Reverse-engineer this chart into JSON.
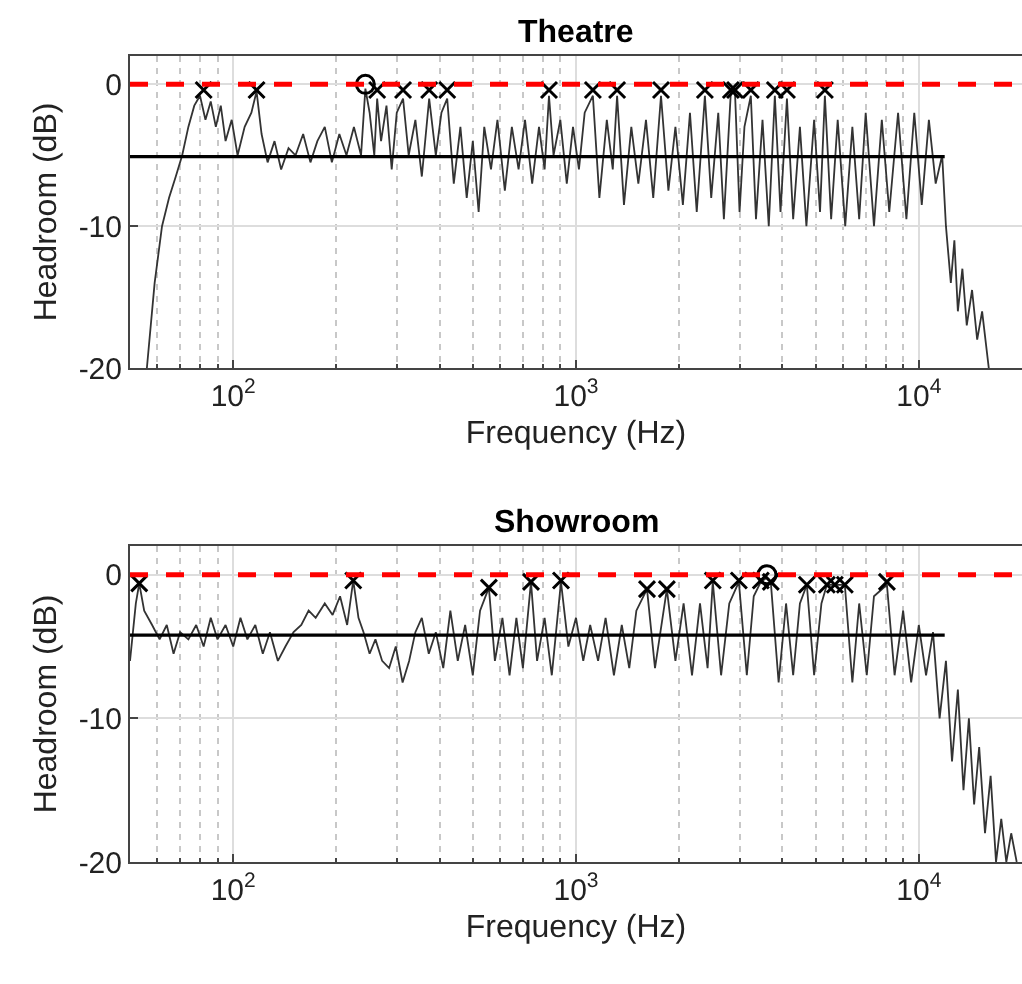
{
  "chart_data": [
    {
      "type": "line",
      "title": "Theatre",
      "xlabel": "Frequency (Hz)",
      "ylabel": "Headroom (dB)",
      "log": "x",
      "xlim": [
        50,
        20000
      ],
      "ylim": [
        -20,
        2
      ],
      "xticks": [
        {
          "value": 100,
          "label": "10$^{2}$"
        },
        {
          "value": 1000,
          "label": "10$^{3}$"
        },
        {
          "value": 10000,
          "label": "10$^{4}$"
        }
      ],
      "yticks": [
        -20,
        -10,
        0
      ],
      "grid": true,
      "ref_lines": [
        {
          "axis": "y",
          "value": 0,
          "color": "#ff0000",
          "line_style": "dashed"
        }
      ],
      "series": [
        {
          "color": "#333333",
          "x": [
            56,
            59,
            62,
            65,
            68,
            71,
            74,
            77,
            80,
            83,
            86,
            89,
            92,
            95,
            99,
            103,
            108,
            113,
            117,
            121,
            126,
            132,
            138,
            145,
            152,
            160,
            168,
            176,
            185,
            194,
            204,
            214,
            225,
            236,
            243,
            250,
            258,
            263,
            270,
            280,
            290,
            300,
            313,
            325,
            340,
            355,
            373,
            390,
            405,
            421,
            440,
            460,
            480,
            500,
            520,
            540,
            565,
            590,
            620,
            650,
            680,
            710,
            745,
            780,
            810,
            834,
            860,
            900,
            940,
            980,
            1020,
            1060,
            1120,
            1170,
            1230,
            1280,
            1318,
            1380,
            1450,
            1520,
            1600,
            1680,
            1770,
            1860,
            1950,
            2050,
            2150,
            2250,
            2377,
            2480,
            2600,
            2700,
            2830,
            2910,
            3000,
            3100,
            3236,
            3350,
            3500,
            3650,
            3802,
            3950,
            4124,
            4300,
            4500,
            4700,
            4950,
            5150,
            5321,
            5550,
            5800,
            6100,
            6400,
            6700,
            7000,
            7400,
            7800,
            8200,
            8700,
            9200,
            9700,
            10200,
            10700,
            11200,
            11700,
            12000,
            12400,
            12700,
            13000,
            13400,
            13800,
            14300,
            14800,
            15300,
            16000
          ],
          "values": [
            -20,
            -14,
            -10,
            -8,
            -6.5,
            -5,
            -3,
            -1.5,
            -0.8,
            -2.5,
            -1.2,
            -3,
            -1.5,
            -4,
            -2.5,
            -5,
            -3,
            -2,
            -0.5,
            -3.5,
            -5.5,
            -4,
            -6,
            -4.5,
            -5,
            -3.5,
            -5.5,
            -4,
            -3,
            -5.5,
            -3.5,
            -5,
            -3,
            -5,
            -0.3,
            -2,
            -5,
            -1,
            -4,
            -1.5,
            -6,
            -2,
            -1,
            -5,
            -2.5,
            -6.5,
            -1,
            -5,
            -2,
            -1,
            -7,
            -3,
            -8,
            -4,
            -9,
            -3,
            -6,
            -2.5,
            -7.5,
            -3,
            -6,
            -2.5,
            -7,
            -3,
            -6,
            -0.8,
            -5,
            -2.5,
            -7,
            -3,
            -6,
            -2,
            -0.8,
            -8,
            -2.5,
            -6,
            -0.8,
            -8.5,
            -3,
            -7,
            -2.5,
            -8,
            -0.8,
            -7.5,
            -3,
            -8.5,
            -2,
            -9,
            -0.8,
            -8,
            -2,
            -9.5,
            -0.5,
            -0.6,
            -9,
            -3,
            -0.8,
            -9.5,
            -2.5,
            -10,
            -0.8,
            -9,
            -1,
            -9.5,
            -3,
            -10,
            -2.5,
            -9,
            -0.8,
            -9.5,
            -2.5,
            -10,
            -3,
            -9.5,
            -2,
            -10,
            -2.5,
            -9,
            -2,
            -9.5,
            -2,
            -8.5,
            -2.5,
            -7,
            -5,
            -10,
            -14,
            -11,
            -16,
            -13,
            -17,
            -14.5,
            -18,
            -16,
            -20
          ]
        },
        {
          "color": "#000000",
          "x": [
            50,
            11900
          ],
          "values": [
            -5.1,
            -5.1
          ]
        },
        {
          "type": "scatter",
          "marker": "cross",
          "color": "#000000",
          "x": [
            82,
            117,
            263,
            313,
            373,
            421,
            834,
            1120,
            1318,
            1770,
            2377,
            2830,
            2910,
            3236,
            3802,
            4124,
            5321
          ],
          "values": [
            -0.4,
            -0.4,
            -0.4,
            -0.4,
            -0.4,
            -0.4,
            -0.4,
            -0.4,
            -0.4,
            -0.4,
            -0.4,
            -0.4,
            -0.4,
            -0.4,
            -0.4,
            -0.4,
            -0.4
          ]
        },
        {
          "type": "scatter",
          "marker": "circle",
          "color": "#000000",
          "x": [
            243
          ],
          "values": [
            0
          ]
        }
      ]
    },
    {
      "type": "line",
      "title": "Showroom",
      "xlabel": "Frequency (Hz)",
      "ylabel": "Headroom (dB)",
      "log": "x",
      "xlim": [
        50,
        20000
      ],
      "ylim": [
        -20,
        2
      ],
      "xticks": [
        {
          "value": 100,
          "label": "10$^{2}$"
        },
        {
          "value": 1000,
          "label": "10$^{3}$"
        },
        {
          "value": 10000,
          "label": "10$^{4}$"
        }
      ],
      "yticks": [
        -20,
        -10,
        0
      ],
      "grid": true,
      "ref_lines": [
        {
          "axis": "y",
          "value": 0,
          "color": "#ff0000",
          "line_style": "dashed"
        }
      ],
      "series": [
        {
          "color": "#333333",
          "x": [
            50,
            52,
            53.2,
            55,
            58,
            61,
            64,
            67,
            70,
            74,
            78,
            82,
            86,
            90,
            95,
            100,
            105,
            110,
            116,
            122,
            128,
            135,
            142,
            150,
            158,
            166,
            174,
            185,
            195,
            205,
            215,
            224,
            232,
            240,
            250,
            260,
            272,
            285,
            298,
            312,
            326,
            340,
            355,
            372,
            390,
            410,
            430,
            452,
            475,
            500,
            525,
            557,
            580,
            610,
            640,
            670,
            700,
            739,
            770,
            810,
            850,
            904,
            950,
            1000,
            1050,
            1100,
            1160,
            1220,
            1290,
            1360,
            1430,
            1500,
            1611,
            1700,
            1841,
            1950,
            2060,
            2180,
            2300,
            2420,
            2506,
            2650,
            2800,
            2986,
            3150,
            3300,
            3460,
            3606,
            3700,
            3900,
            4100,
            4300,
            4500,
            4714,
            4950,
            5200,
            5393,
            5689,
            6084,
            6400,
            6700,
            7050,
            7400,
            8072,
            8500,
            9000,
            9500,
            10000,
            10500,
            11000,
            11500,
            12000,
            12500,
            13000,
            13500,
            14000,
            14500,
            15000,
            15600,
            16200,
            16800,
            17400,
            18000,
            18600,
            19300
          ],
          "values": [
            -6,
            -2,
            -0.6,
            -2.5,
            -3.5,
            -4.5,
            -3.5,
            -5.5,
            -4,
            -4.5,
            -3.5,
            -5,
            -3,
            -4.5,
            -3.5,
            -5,
            -3,
            -4.5,
            -3.5,
            -5.5,
            -4,
            -6,
            -5,
            -4,
            -3.5,
            -2.5,
            -3,
            -2,
            -2.8,
            -1.5,
            -3.5,
            -0.4,
            -3,
            -4,
            -5.5,
            -4.5,
            -6,
            -6.5,
            -5,
            -7.5,
            -6,
            -4,
            -3,
            -5.5,
            -4,
            -6.5,
            -2.5,
            -6,
            -3.5,
            -7,
            -2.5,
            -0.9,
            -6,
            -3,
            -7,
            -3,
            -6.5,
            -0.5,
            -6,
            -3,
            -7,
            -0.5,
            -5,
            -3,
            -6,
            -3.5,
            -6,
            -3,
            -7,
            -3.5,
            -6.5,
            -2.5,
            -1,
            -6.5,
            -1,
            -6,
            -2,
            -7,
            -2,
            -6.5,
            -0.5,
            -7,
            -2,
            -0.5,
            -7,
            -1.5,
            -0.5,
            -0.2,
            -0.5,
            -7.5,
            -2,
            -7,
            -2,
            -0.7,
            -7,
            -2,
            -0.7,
            -0.7,
            -0.7,
            -7.5,
            -2,
            -7,
            -1.5,
            -0.7,
            -7,
            -2.5,
            -7.5,
            -3.5,
            -7,
            -4,
            -10,
            -6,
            -13,
            -8,
            -15,
            -10,
            -16,
            -12,
            -18,
            -14,
            -20,
            -17,
            -20,
            -18,
            -20
          ]
        },
        {
          "color": "#000000",
          "x": [
            50,
            11900
          ],
          "values": [
            -4.2,
            -4.2
          ]
        },
        {
          "type": "scatter",
          "marker": "cross",
          "color": "#000000",
          "x": [
            53.2,
            224,
            557,
            739,
            904,
            1611,
            1841,
            2506,
            2986,
            3460,
            3700,
            4714,
            5393,
            5689,
            6084,
            8072
          ],
          "values": [
            -0.6,
            -0.4,
            -0.9,
            -0.5,
            -0.4,
            -1,
            -1,
            -0.4,
            -0.4,
            -0.4,
            -0.5,
            -0.7,
            -0.7,
            -0.7,
            -0.7,
            -0.5
          ]
        },
        {
          "type": "scatter",
          "marker": "circle",
          "color": "#000000",
          "x": [
            3606
          ],
          "values": [
            0
          ]
        }
      ]
    }
  ]
}
